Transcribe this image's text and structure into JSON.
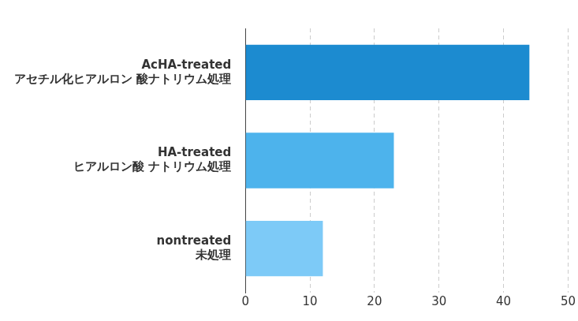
{
  "chart_data": {
    "type": "bar",
    "orientation": "horizontal",
    "categories": [
      [
        "AcHA-treated",
        "アセチル化ヒアルロン 酸ナトリウム処理"
      ],
      [
        "HA-treated",
        "ヒアルロン酸 ナトリウム処理"
      ],
      [
        "nontreated",
        "未処理"
      ]
    ],
    "values": [
      44,
      23,
      12
    ],
    "colors": [
      "#1c8bd0",
      "#4db3ec",
      "#7dcaf7"
    ],
    "xlim": [
      0,
      50
    ],
    "xticks": [
      0,
      10,
      20,
      30,
      40,
      50
    ],
    "grid": true
  }
}
